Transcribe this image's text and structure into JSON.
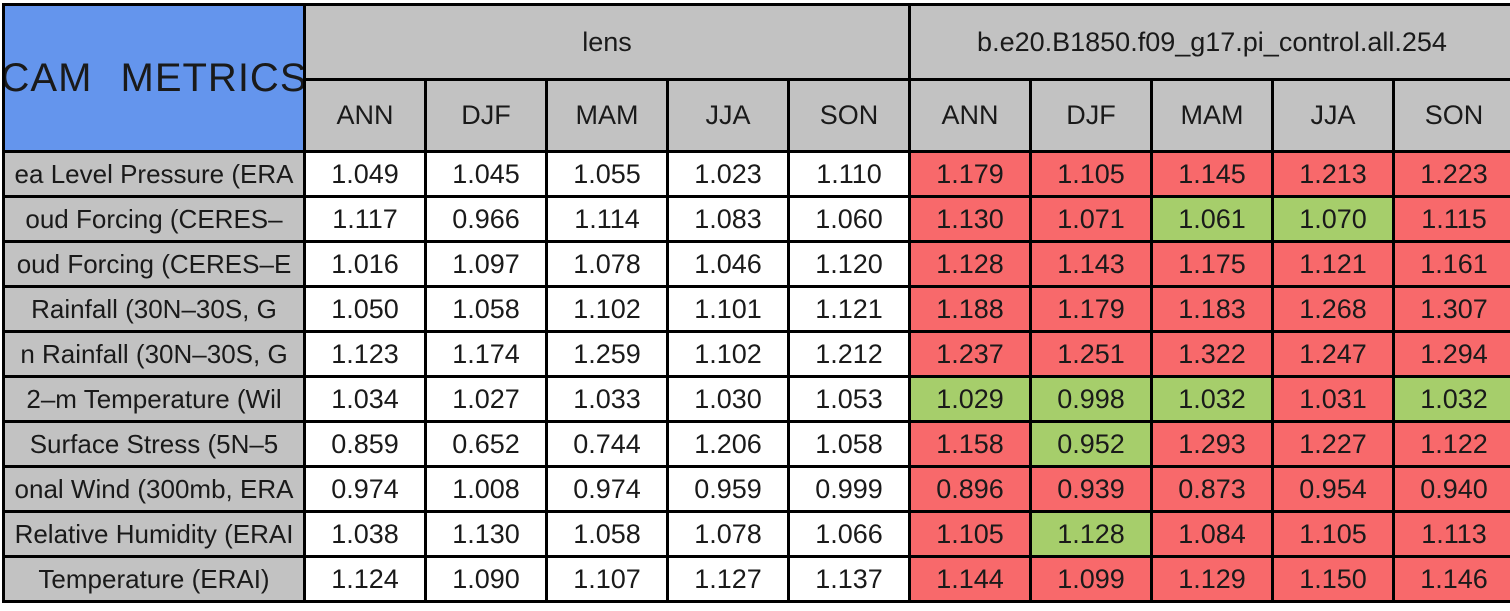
{
  "chart_data": {
    "type": "table",
    "title": "CAM METRICS",
    "column_groups": [
      {
        "label": "lens"
      },
      {
        "label": "b.e20.B1850.f09_g17.pi_control.all.254"
      }
    ],
    "season_columns": [
      "ANN",
      "DJF",
      "MAM",
      "JJA",
      "SON"
    ],
    "rows": [
      {
        "label": "ea Level Pressure (ERA",
        "lens": [
          "1.049",
          "1.045",
          "1.055",
          "1.023",
          "1.110"
        ],
        "control": [
          "1.179",
          "1.105",
          "1.145",
          "1.213",
          "1.223"
        ],
        "control_colors": [
          "red",
          "red",
          "red",
          "red",
          "red"
        ]
      },
      {
        "label": "oud Forcing (CERES–",
        "lens": [
          "1.117",
          "0.966",
          "1.114",
          "1.083",
          "1.060"
        ],
        "control": [
          "1.130",
          "1.071",
          "1.061",
          "1.070",
          "1.115"
        ],
        "control_colors": [
          "red",
          "red",
          "green",
          "green",
          "red"
        ]
      },
      {
        "label": "oud Forcing (CERES–E",
        "lens": [
          "1.016",
          "1.097",
          "1.078",
          "1.046",
          "1.120"
        ],
        "control": [
          "1.128",
          "1.143",
          "1.175",
          "1.121",
          "1.161"
        ],
        "control_colors": [
          "red",
          "red",
          "red",
          "red",
          "red"
        ]
      },
      {
        "label": "Rainfall (30N–30S, G",
        "lens": [
          "1.050",
          "1.058",
          "1.102",
          "1.101",
          "1.121"
        ],
        "control": [
          "1.188",
          "1.179",
          "1.183",
          "1.268",
          "1.307"
        ],
        "control_colors": [
          "red",
          "red",
          "red",
          "red",
          "red"
        ]
      },
      {
        "label": "n Rainfall (30N–30S, G",
        "lens": [
          "1.123",
          "1.174",
          "1.259",
          "1.102",
          "1.212"
        ],
        "control": [
          "1.237",
          "1.251",
          "1.322",
          "1.247",
          "1.294"
        ],
        "control_colors": [
          "red",
          "red",
          "red",
          "red",
          "red"
        ]
      },
      {
        "label": "2–m Temperature (Wil",
        "lens": [
          "1.034",
          "1.027",
          "1.033",
          "1.030",
          "1.053"
        ],
        "control": [
          "1.029",
          "0.998",
          "1.032",
          "1.031",
          "1.032"
        ],
        "control_colors": [
          "green",
          "green",
          "green",
          "red",
          "green"
        ]
      },
      {
        "label": "Surface Stress (5N–5",
        "lens": [
          "0.859",
          "0.652",
          "0.744",
          "1.206",
          "1.058"
        ],
        "control": [
          "1.158",
          "0.952",
          "1.293",
          "1.227",
          "1.122"
        ],
        "control_colors": [
          "red",
          "green",
          "red",
          "red",
          "red"
        ]
      },
      {
        "label": "onal Wind (300mb, ERA",
        "lens": [
          "0.974",
          "1.008",
          "0.974",
          "0.959",
          "0.999"
        ],
        "control": [
          "0.896",
          "0.939",
          "0.873",
          "0.954",
          "0.940"
        ],
        "control_colors": [
          "red",
          "red",
          "red",
          "red",
          "red"
        ]
      },
      {
        "label": "Relative Humidity (ERAI",
        "lens": [
          "1.038",
          "1.130",
          "1.058",
          "1.078",
          "1.066"
        ],
        "control": [
          "1.105",
          "1.128",
          "1.084",
          "1.105",
          "1.113"
        ],
        "control_colors": [
          "red",
          "green",
          "red",
          "red",
          "red"
        ]
      },
      {
        "label": "Temperature (ERAI)",
        "lens": [
          "1.124",
          "1.090",
          "1.107",
          "1.127",
          "1.137"
        ],
        "control": [
          "1.144",
          "1.099",
          "1.129",
          "1.150",
          "1.146"
        ],
        "control_colors": [
          "red",
          "red",
          "red",
          "red",
          "red"
        ]
      }
    ],
    "colors": {
      "title_bg": "#6495ED",
      "header_bg": "#C2C2C2",
      "label_bg": "#C2C2C2",
      "value_bg": "#FFFFFF",
      "red": "#F8696B",
      "green": "#A6CE6B",
      "border": "#000000",
      "text": "#1A1A1A",
      "page_bg": "#FFFFFF"
    }
  }
}
